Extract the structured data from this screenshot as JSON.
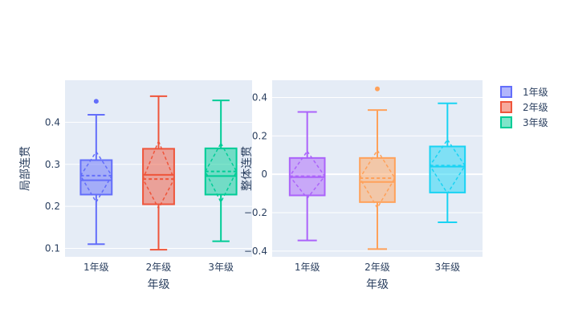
{
  "chart_data": [
    {
      "type": "box",
      "xlabel": "年级",
      "ylabel": "局部连贯",
      "categories": [
        "1年级",
        "2年级",
        "3年级"
      ],
      "ylim": [
        0.08,
        0.5
      ],
      "yticks": [
        0.1,
        0.2,
        0.3,
        0.4
      ],
      "grid": true,
      "boxes": [
        {
          "category": "1年级",
          "color": "#636efa",
          "min": 0.11,
          "q1": 0.228,
          "median": 0.262,
          "q3": 0.31,
          "max": 0.418,
          "mean": 0.273,
          "notch_low": 0.21,
          "notch_high": 0.33,
          "outliers": [
            0.45
          ]
        },
        {
          "category": "2年级",
          "color": "#ef553b",
          "min": 0.097,
          "q1": 0.205,
          "median": 0.275,
          "q3": 0.337,
          "max": 0.462,
          "mean": 0.265,
          "notch_low": 0.195,
          "notch_high": 0.355,
          "outliers": []
        },
        {
          "category": "3年级",
          "color": "#00cc96",
          "min": 0.117,
          "q1": 0.228,
          "median": 0.272,
          "q3": 0.338,
          "max": 0.452,
          "mean": 0.283,
          "notch_low": 0.21,
          "notch_high": 0.35,
          "outliers": []
        }
      ]
    },
    {
      "type": "box",
      "xlabel": "年级",
      "ylabel": "整体连贯",
      "categories": [
        "1年级",
        "2年级",
        "3年级"
      ],
      "ylim": [
        -0.43,
        0.49
      ],
      "yticks": [
        -0.4,
        -0.2,
        0,
        0.2,
        0.4
      ],
      "ytick_labels": [
        "−0.4",
        "−0.2",
        "0",
        "0.2",
        "0.4"
      ],
      "grid": true,
      "boxes": [
        {
          "category": "1年级",
          "color": "#ab63fa",
          "min": -0.345,
          "q1": -0.11,
          "median": -0.015,
          "q3": 0.085,
          "max": 0.325,
          "mean": -0.01,
          "notch_low": -0.125,
          "notch_high": 0.12,
          "outliers": []
        },
        {
          "category": "2年级",
          "color": "#ffa15a",
          "min": -0.39,
          "q1": -0.145,
          "median": -0.04,
          "q3": 0.085,
          "max": 0.335,
          "mean": -0.02,
          "notch_low": -0.175,
          "notch_high": 0.125,
          "outliers": [
            0.445
          ]
        },
        {
          "category": "3年级",
          "color": "#19d3f3",
          "min": -0.25,
          "q1": -0.095,
          "median": 0.04,
          "q3": 0.145,
          "max": 0.37,
          "mean": 0.045,
          "notch_low": -0.1,
          "notch_high": 0.18,
          "outliers": []
        }
      ]
    }
  ],
  "legend": {
    "placement": "top-right",
    "items": [
      {
        "label": "1年级",
        "color": "#636efa"
      },
      {
        "label": "2年级",
        "color": "#ef553b"
      },
      {
        "label": "3年级",
        "color": "#00cc96"
      }
    ]
  },
  "colors": {
    "plot_background": "#e5ecf6",
    "gridline": "#ffffff",
    "text": "#2a3f5f"
  }
}
